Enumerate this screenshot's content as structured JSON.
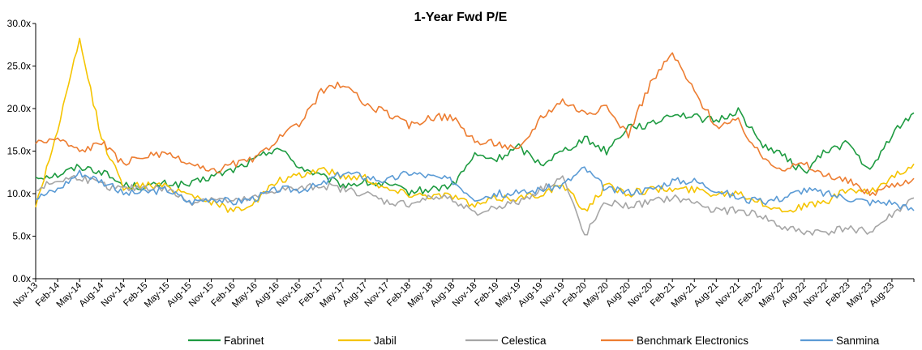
{
  "chart_data": {
    "type": "line",
    "title": "1-Year Fwd P/E",
    "xlabel": "",
    "ylabel": "",
    "ylim": [
      0,
      30
    ],
    "yticks": [
      "0.0x",
      "5.0x",
      "10.0x",
      "15.0x",
      "20.0x",
      "25.0x",
      "30.0x"
    ],
    "ytick_values": [
      0,
      5,
      10,
      15,
      20,
      25,
      30
    ],
    "x": [
      "Nov-13",
      "Feb-14",
      "May-14",
      "Aug-14",
      "Nov-14",
      "Feb-15",
      "May-15",
      "Aug-15",
      "Nov-15",
      "Feb-16",
      "May-16",
      "Aug-16",
      "Nov-16",
      "Feb-17",
      "May-17",
      "Aug-17",
      "Nov-17",
      "Feb-18",
      "May-18",
      "Aug-18",
      "Nov-18",
      "Feb-19",
      "May-19",
      "Aug-19",
      "Nov-19",
      "Feb-20",
      "May-20",
      "Aug-20",
      "Nov-20",
      "Feb-21",
      "May-21",
      "Aug-21",
      "Nov-21",
      "Feb-22",
      "May-22",
      "Aug-22",
      "Nov-22",
      "Feb-23",
      "May-23",
      "Aug-23",
      "Nov-23"
    ],
    "grid": false,
    "legend_position": "bottom",
    "series": [
      {
        "name": "Fabrinet",
        "color": "#1e9b41",
        "values": [
          12.0,
          12.2,
          13.2,
          12.6,
          11.0,
          10.8,
          11.2,
          11.0,
          12.0,
          12.8,
          14.0,
          15.5,
          13.2,
          12.0,
          11.0,
          11.3,
          11.0,
          10.2,
          10.5,
          11.0,
          14.5,
          14.0,
          15.5,
          13.5,
          15.0,
          16.5,
          15.0,
          18.0,
          18.0,
          19.5,
          19.0,
          18.5,
          19.8,
          16.0,
          14.5,
          12.5,
          15.0,
          16.0,
          12.5,
          17.0,
          19.5
        ]
      },
      {
        "name": "Jabil",
        "color": "#f5c400",
        "values": [
          8.5,
          17.5,
          28.0,
          16.5,
          10.8,
          11.0,
          10.8,
          10.0,
          9.0,
          8.0,
          9.0,
          11.5,
          12.0,
          13.0,
          12.0,
          12.0,
          10.5,
          10.0,
          9.8,
          9.8,
          8.5,
          9.5,
          9.5,
          10.0,
          11.0,
          8.0,
          11.0,
          10.0,
          10.5,
          10.5,
          10.5,
          10.0,
          10.2,
          9.0,
          8.0,
          8.5,
          9.0,
          10.5,
          10.0,
          12.0,
          13.5
        ]
      },
      {
        "name": "Celestica",
        "color": "#a6a6a6",
        "values": [
          10.5,
          11.5,
          12.0,
          11.0,
          10.5,
          10.8,
          10.5,
          9.0,
          9.5,
          9.0,
          9.5,
          10.5,
          10.5,
          11.0,
          10.5,
          10.0,
          9.0,
          8.8,
          9.5,
          9.5,
          7.5,
          8.5,
          9.0,
          10.5,
          12.0,
          5.0,
          9.0,
          8.5,
          9.0,
          9.5,
          9.0,
          8.0,
          8.0,
          7.5,
          6.0,
          5.5,
          5.5,
          6.0,
          5.5,
          7.5,
          9.5
        ]
      },
      {
        "name": "Benchmark Electronics",
        "color": "#ed7d31",
        "values": [
          16.0,
          16.5,
          15.0,
          16.0,
          13.5,
          14.5,
          14.5,
          13.5,
          12.5,
          13.5,
          14.0,
          16.5,
          18.0,
          22.0,
          23.0,
          20.5,
          19.5,
          18.0,
          19.0,
          19.0,
          16.0,
          16.0,
          15.0,
          19.0,
          21.0,
          19.5,
          20.0,
          17.0,
          23.0,
          26.5,
          22.0,
          18.0,
          18.5,
          14.5,
          13.0,
          13.5,
          12.0,
          11.5,
          10.0,
          11.0,
          11.8
        ]
      },
      {
        "name": "Sanmina",
        "color": "#5b9bd5",
        "values": [
          9.5,
          10.5,
          12.5,
          11.5,
          10.0,
          10.2,
          10.5,
          9.0,
          9.5,
          9.0,
          9.5,
          10.5,
          10.5,
          11.0,
          12.5,
          12.0,
          11.5,
          12.5,
          12.0,
          11.5,
          9.5,
          10.0,
          10.0,
          10.5,
          11.0,
          13.0,
          10.5,
          10.2,
          10.5,
          11.5,
          11.5,
          10.5,
          9.5,
          9.0,
          9.5,
          10.5,
          10.0,
          9.5,
          9.0,
          9.0,
          8.0
        ]
      }
    ]
  }
}
